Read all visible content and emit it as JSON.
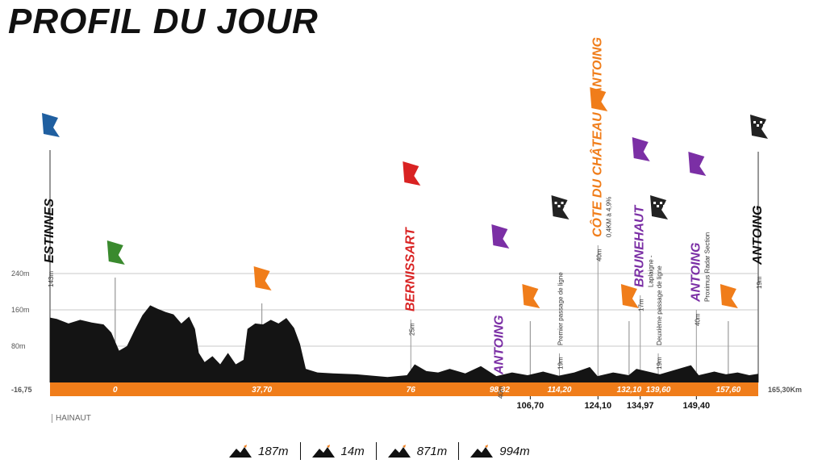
{
  "title": "PROFIL DU JOUR",
  "region": "HAINAUT",
  "legend": [
    {
      "value": "187m",
      "icon": "mountain-flag-icon"
    },
    {
      "value": "14m",
      "icon": "mountain-flag-icon"
    },
    {
      "value": "871m",
      "icon": "mountain-flag-icon"
    },
    {
      "value": "994m",
      "icon": "mountain-flag-icon"
    }
  ],
  "colors": {
    "orange": "#f07d1a",
    "profile": "#141414",
    "purple": "#7b2fa5",
    "red": "#d92323",
    "green": "#3a8a2e",
    "blue": "#1f5fa0"
  },
  "chart_data": {
    "type": "area",
    "xlim": [
      -16.75,
      165.3
    ],
    "ylim": [
      0,
      280
    ],
    "y_ticks": [
      "240m",
      "160m",
      "80m"
    ],
    "y_tick_values": [
      240,
      160,
      80
    ],
    "start_label": "-16,75",
    "end_label": "165,30Km",
    "profile": [
      [
        -16.75,
        143
      ],
      [
        -15,
        140
      ],
      [
        -12,
        130
      ],
      [
        -9,
        138
      ],
      [
        -6,
        132
      ],
      [
        -3,
        128
      ],
      [
        -1,
        110
      ],
      [
        1,
        70
      ],
      [
        3,
        80
      ],
      [
        5,
        115
      ],
      [
        7,
        148
      ],
      [
        9,
        170
      ],
      [
        11,
        162
      ],
      [
        13,
        155
      ],
      [
        15,
        150
      ],
      [
        17,
        130
      ],
      [
        19,
        145
      ],
      [
        20.5,
        118
      ],
      [
        21.5,
        65
      ],
      [
        23,
        45
      ],
      [
        25,
        58
      ],
      [
        27,
        40
      ],
      [
        29,
        65
      ],
      [
        31,
        40
      ],
      [
        33,
        50
      ],
      [
        34,
        118
      ],
      [
        36,
        130
      ],
      [
        38,
        128
      ],
      [
        40,
        138
      ],
      [
        42,
        130
      ],
      [
        44,
        142
      ],
      [
        46,
        120
      ],
      [
        47.5,
        85
      ],
      [
        49,
        30
      ],
      [
        52,
        22
      ],
      [
        56,
        20
      ],
      [
        62,
        18
      ],
      [
        70,
        12
      ],
      [
        75,
        16
      ],
      [
        77,
        40
      ],
      [
        80,
        25
      ],
      [
        83,
        22
      ],
      [
        86,
        30
      ],
      [
        90,
        20
      ],
      [
        94,
        36
      ],
      [
        98,
        14
      ],
      [
        102,
        22
      ],
      [
        106,
        16
      ],
      [
        110,
        24
      ],
      [
        114,
        15
      ],
      [
        118,
        22
      ],
      [
        122,
        34
      ],
      [
        124,
        14
      ],
      [
        128,
        22
      ],
      [
        132,
        16
      ],
      [
        134,
        30
      ],
      [
        137,
        24
      ],
      [
        140,
        18
      ],
      [
        144,
        28
      ],
      [
        148,
        38
      ],
      [
        150,
        16
      ],
      [
        154,
        24
      ],
      [
        157,
        18
      ],
      [
        160,
        22
      ],
      [
        163,
        16
      ],
      [
        165.3,
        19
      ]
    ],
    "km_labels": [
      {
        "km": 0,
        "label": "0",
        "position": "on-bar"
      },
      {
        "km": 37.7,
        "label": "37,70",
        "position": "on-bar"
      },
      {
        "km": 76,
        "label": "76",
        "position": "on-bar"
      },
      {
        "km": 98.82,
        "label": "98,82",
        "position": "on-bar"
      },
      {
        "km": 106.7,
        "label": "106,70",
        "position": "below"
      },
      {
        "km": 114.2,
        "label": "114,20",
        "position": "on-bar"
      },
      {
        "km": 124.1,
        "label": "124,10",
        "position": "below"
      },
      {
        "km": 132.1,
        "label": "132,10",
        "position": "on-bar"
      },
      {
        "km": 134.97,
        "label": "134,97",
        "position": "below"
      },
      {
        "km": 139.6,
        "label": "139,60",
        "position": "on-bar"
      },
      {
        "km": 149.4,
        "label": "149,40",
        "position": "below"
      },
      {
        "km": 157.6,
        "label": "157,60",
        "position": "on-bar"
      }
    ],
    "markers": [
      {
        "km": -16.75,
        "label": "ESTINNES",
        "elev": "143m",
        "type": "start",
        "color": "#1f5fa0",
        "label_color": "#111"
      },
      {
        "km": 0,
        "label": "",
        "elev": "",
        "type": "go",
        "color": "#3a8a2e",
        "label_color": "#111"
      },
      {
        "km": 37.7,
        "label": "",
        "elev": "",
        "type": "sprint",
        "color": "#f07d1a",
        "label_color": "#111"
      },
      {
        "km": 76,
        "label": "BERNISSART",
        "elev": "25m",
        "type": "ravito",
        "color": "#d92323",
        "label_color": "#d92323"
      },
      {
        "km": 98.82,
        "label": "ANTOING",
        "elev": "40m",
        "type": "sprint-s",
        "color": "#7b2fa5",
        "label_color": "#7b2fa5"
      },
      {
        "km": 106.7,
        "label": "",
        "elev": "",
        "type": "sprint",
        "color": "#f07d1a",
        "label_color": "#111"
      },
      {
        "km": 114.2,
        "label": "Premier passage de ligne",
        "elev": "19m",
        "type": "line-pass",
        "color": "#222",
        "label_color": "#333"
      },
      {
        "km": 124.1,
        "label": "CÔTE DU CHÂTEAU D'ANTOING",
        "elev": "40m",
        "note": "0,4KM à 4,9%",
        "type": "climb",
        "color": "#f07d1a",
        "label_color": "#f07d1a"
      },
      {
        "km": 132.1,
        "label": "",
        "elev": "",
        "type": "sprint",
        "color": "#f07d1a",
        "label_color": "#111"
      },
      {
        "km": 134.97,
        "label": "BRUNEHAUT",
        "elev": "17m",
        "note": "Laplaigne -",
        "type": "sprint-s",
        "color": "#7b2fa5",
        "label_color": "#7b2fa5"
      },
      {
        "km": 139.6,
        "label": "Deuxième passage de ligne",
        "elev": "19m",
        "type": "line-pass",
        "color": "#222",
        "label_color": "#333"
      },
      {
        "km": 149.4,
        "label": "ANTOING",
        "elev": "40m",
        "note": "Proximus Radar Section",
        "type": "sprint-s",
        "color": "#7b2fa5",
        "label_color": "#7b2fa5"
      },
      {
        "km": 157.6,
        "label": "",
        "elev": "",
        "type": "sprint",
        "color": "#f07d1a",
        "label_color": "#111"
      },
      {
        "km": 165.3,
        "label": "ANTOING",
        "elev": "19m",
        "type": "finish",
        "color": "#222",
        "label_color": "#111"
      }
    ]
  }
}
